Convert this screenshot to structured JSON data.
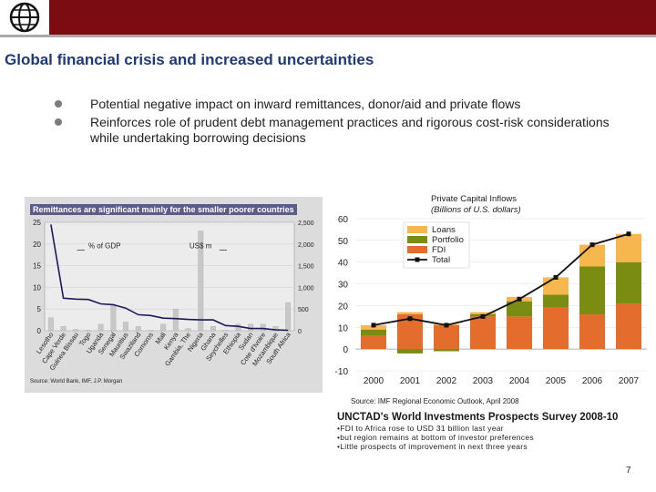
{
  "title": "Global financial crisis and increased uncertainties",
  "bullets": [
    "Potential negative impact on inward remittances, donor/aid and private flows",
    "Reinforces role of prudent debt management practices and rigorous cost-risk considerations while undertaking borrowing decisions"
  ],
  "colors": {
    "brand_bar": "#7a0c12",
    "title": "#1f3a7a",
    "loans": "#f7b74f",
    "portfolio": "#7a8c12",
    "fdi": "#e46c2c",
    "total": "#111111"
  },
  "chart_data": [
    {
      "type": "bar",
      "title": "Remittances are significant mainly for the smaller poorer countries",
      "source": "Source: World Bank, IMF, J.P. Morgan",
      "categories": [
        "Lesotho",
        "Cape Verde",
        "Guinea Bissau",
        "Togo",
        "Uganda",
        "Senegal",
        "Mauritius",
        "Swaziland",
        "Comoros",
        "Mali",
        "Kenya",
        "Gambia, The",
        "Nigeria",
        "Ghana",
        "Seychelles",
        "Ethiopia",
        "Sudan",
        "Cote d'Ivoire",
        "Mozambique",
        "South Africa"
      ],
      "series": [
        {
          "name": "% of GDP",
          "axis": "left",
          "values": [
            24.5,
            7.5,
            7.3,
            7.2,
            6.2,
            6.0,
            5.2,
            3.7,
            3.5,
            2.9,
            2.8,
            2.6,
            2.5,
            2.5,
            1.2,
            1.0,
            0.5,
            0.5,
            0.2,
            0.1
          ]
        },
        {
          "name": "US$ m",
          "axis": "right",
          "values": [
            300,
            100,
            30,
            10,
            150,
            600,
            200,
            100,
            10,
            150,
            500,
            50,
            2300,
            100,
            10,
            150,
            150,
            150,
            100,
            650
          ]
        }
      ],
      "ylim_left": [
        0,
        25
      ],
      "ylim_right": [
        0,
        2500
      ],
      "yticks_left": [
        "0",
        "5",
        "10",
        "15",
        "20",
        "25"
      ],
      "yticks_right": [
        "0",
        "500",
        "1,000",
        "1,500",
        "2,000",
        "2,500"
      ]
    },
    {
      "type": "bar",
      "stacked": true,
      "title": "Private Capital Inflows",
      "subtitle": "(Billions of U.S. dollars)",
      "source": "Source: IMF Regional Economic Outlook, April 2008",
      "categories": [
        "2000",
        "2001",
        "2002",
        "2003",
        "2004",
        "2005",
        "2006",
        "2007"
      ],
      "series": [
        {
          "name": "Loans",
          "values": [
            2,
            1,
            0.5,
            1,
            2,
            8,
            10,
            13
          ]
        },
        {
          "name": "Portfolio",
          "values": [
            3,
            -2,
            -1,
            1,
            7,
            6,
            22,
            19
          ]
        },
        {
          "name": "FDI",
          "values": [
            6,
            16,
            11,
            15,
            15,
            19,
            16,
            21
          ]
        },
        {
          "name": "Total",
          "type": "line",
          "values": [
            11,
            14,
            11,
            15,
            23,
            33,
            48,
            53
          ]
        }
      ],
      "ylim": [
        -10,
        60
      ],
      "yticks": [
        "-10",
        "0",
        "10",
        "20",
        "30",
        "40",
        "50",
        "60"
      ],
      "legend": "top-left"
    }
  ],
  "survey": {
    "title": "UNCTAD's World Investments Prospects Survey 2008-10",
    "lines": [
      "•FDI to Africa rose to USD 31 billion last year",
      "•but region remains at bottom of investor preferences",
      "•Little prospects of improvement in next three years"
    ]
  },
  "page_number": "7"
}
